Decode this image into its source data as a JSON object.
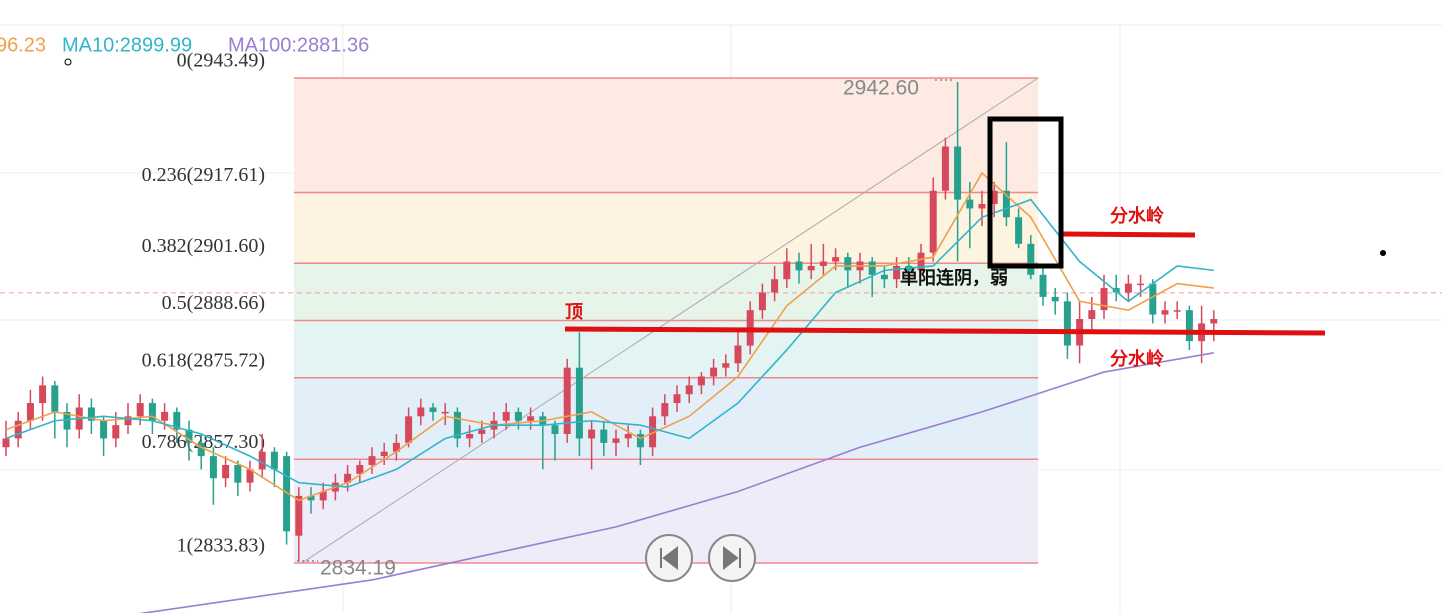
{
  "chart_data": {
    "type": "candlestick",
    "ylim": [
      2822.53,
      2961.13
    ],
    "up_color": "#d6495c",
    "down_color": "#27a08d",
    "ohlc": [
      [
        2860,
        2866,
        2858,
        2862
      ],
      [
        2862,
        2868,
        2860,
        2866
      ],
      [
        2866,
        2873,
        2864,
        2870
      ],
      [
        2870,
        2876,
        2866,
        2874
      ],
      [
        2874,
        2875,
        2862,
        2868
      ],
      [
        2868,
        2870,
        2860,
        2864
      ],
      [
        2864,
        2872,
        2862,
        2869
      ],
      [
        2869,
        2871,
        2863,
        2866
      ],
      [
        2866,
        2867,
        2858,
        2862
      ],
      [
        2862,
        2868,
        2860,
        2865
      ],
      [
        2865,
        2870,
        2863,
        2867
      ],
      [
        2867,
        2872,
        2865,
        2870
      ],
      [
        2870,
        2871,
        2863,
        2866
      ],
      [
        2866,
        2870,
        2864,
        2868
      ],
      [
        2868,
        2869,
        2861,
        2864
      ],
      [
        2864,
        2866,
        2857,
        2861
      ],
      [
        2861,
        2863,
        2855,
        2858
      ],
      [
        2858,
        2860,
        2847,
        2853
      ],
      [
        2853,
        2858,
        2851,
        2856
      ],
      [
        2856,
        2857,
        2849,
        2852
      ],
      [
        2852,
        2857,
        2850,
        2855
      ],
      [
        2855,
        2863,
        2853,
        2859
      ],
      [
        2859,
        2860,
        2851,
        2855
      ],
      [
        2858,
        2859,
        2838,
        2841
      ],
      [
        2840,
        2851,
        2834.19,
        2849
      ],
      [
        2849,
        2851,
        2845,
        2848
      ],
      [
        2848,
        2852,
        2846,
        2850
      ],
      [
        2850,
        2854,
        2848,
        2852
      ],
      [
        2852,
        2856,
        2850,
        2854
      ],
      [
        2854,
        2857,
        2852,
        2856
      ],
      [
        2856,
        2860,
        2854,
        2858
      ],
      [
        2858,
        2861,
        2856,
        2859
      ],
      [
        2859,
        2863,
        2857,
        2861
      ],
      [
        2861,
        2869,
        2860,
        2867
      ],
      [
        2867,
        2871,
        2865,
        2869
      ],
      [
        2869,
        2870,
        2866,
        2868
      ],
      [
        2868,
        2870,
        2865,
        2868
      ],
      [
        2868,
        2869,
        2860,
        2862
      ],
      [
        2862,
        2865,
        2860,
        2863
      ],
      [
        2863,
        2866,
        2861,
        2864
      ],
      [
        2864,
        2868,
        2862,
        2866
      ],
      [
        2866,
        2870,
        2864,
        2868
      ],
      [
        2868,
        2869,
        2864,
        2866
      ],
      [
        2866,
        2869,
        2864,
        2867
      ],
      [
        2867,
        2868,
        2855,
        2865
      ],
      [
        2865,
        2866,
        2857,
        2863
      ],
      [
        2863,
        2880,
        2861,
        2878
      ],
      [
        2878,
        2886,
        2858,
        2862
      ],
      [
        2862,
        2866,
        2855,
        2864
      ],
      [
        2864,
        2866,
        2858,
        2861
      ],
      [
        2861,
        2864,
        2858,
        2862
      ],
      [
        2862,
        2865,
        2860,
        2863
      ],
      [
        2863,
        2864,
        2856,
        2860
      ],
      [
        2860,
        2869,
        2858,
        2867
      ],
      [
        2867,
        2872,
        2865,
        2870
      ],
      [
        2870,
        2874,
        2868,
        2872
      ],
      [
        2872,
        2876,
        2870,
        2874
      ],
      [
        2874,
        2877,
        2872,
        2876
      ],
      [
        2876,
        2880,
        2874,
        2878
      ],
      [
        2878,
        2881,
        2876,
        2879
      ],
      [
        2879,
        2886,
        2877,
        2883
      ],
      [
        2883,
        2893,
        2881,
        2891
      ],
      [
        2891,
        2897,
        2889,
        2895
      ],
      [
        2895,
        2901,
        2893,
        2898
      ],
      [
        2898,
        2905,
        2896,
        2902
      ],
      [
        2902,
        2904,
        2897,
        2900
      ],
      [
        2900,
        2906,
        2898,
        2901
      ],
      [
        2901,
        2906,
        2899,
        2902
      ],
      [
        2902,
        2905,
        2900,
        2903
      ],
      [
        2903,
        2904,
        2896,
        2900
      ],
      [
        2900,
        2904,
        2897,
        2902
      ],
      [
        2902,
        2903,
        2894,
        2899
      ],
      [
        2899,
        2901,
        2896,
        2898
      ],
      [
        2898,
        2903,
        2896,
        2901
      ],
      [
        2901,
        2903,
        2898,
        2900
      ],
      [
        2900,
        2906,
        2899,
        2904
      ],
      [
        2904,
        2921,
        2902,
        2918
      ],
      [
        2918,
        2930,
        2916,
        2928
      ],
      [
        2928,
        2942.6,
        2902,
        2916
      ],
      [
        2916,
        2920,
        2905,
        2914
      ],
      [
        2914,
        2918,
        2910,
        2915
      ],
      [
        2915,
        2920,
        2912,
        2918
      ],
      [
        2918,
        2929,
        2910,
        2912
      ],
      [
        2912,
        2914,
        2905,
        2906
      ],
      [
        2906,
        2908,
        2898,
        2899
      ],
      [
        2899,
        2901,
        2892,
        2894
      ],
      [
        2894,
        2896,
        2890,
        2893
      ],
      [
        2893,
        2895,
        2880,
        2883
      ],
      [
        2883,
        2893,
        2879,
        2889
      ],
      [
        2889,
        2894,
        2886,
        2891
      ],
      [
        2891,
        2899,
        2889,
        2896
      ],
      [
        2896,
        2899,
        2893,
        2895
      ],
      [
        2895,
        2899,
        2893,
        2897
      ],
      [
        2897,
        2899,
        2894,
        2897
      ],
      [
        2897,
        2898,
        2888,
        2890
      ],
      [
        2890,
        2893,
        2888,
        2891
      ],
      [
        2891,
        2893,
        2889,
        2891
      ],
      [
        2891,
        2892,
        2882,
        2884
      ],
      [
        2884,
        2892,
        2879,
        2888
      ],
      [
        2888,
        2891,
        2884,
        2889
      ]
    ],
    "series": [
      {
        "name": "96.23",
        "color": "#f0a04b",
        "x": [
          0,
          4,
          8,
          12,
          16,
          20,
          24,
          28,
          32,
          36,
          40,
          44,
          48,
          52,
          56,
          60,
          64,
          68,
          72,
          76,
          80,
          84,
          88,
          92,
          96,
          99
        ],
        "values": [
          2864,
          2868,
          2866,
          2867,
          2860,
          2855,
          2848,
          2852,
          2859,
          2867,
          2865,
          2866,
          2868,
          2862,
          2867,
          2876,
          2892,
          2901,
          2901,
          2903,
          2922,
          2912,
          2893,
          2891,
          2897,
          2896
        ]
      },
      {
        "name": "MA10:2899.99",
        "color": "#2fb6c9",
        "x": [
          0,
          4,
          8,
          12,
          16,
          20,
          24,
          28,
          32,
          36,
          40,
          44,
          48,
          52,
          56,
          60,
          64,
          68,
          72,
          76,
          80,
          84,
          88,
          92,
          96,
          99
        ],
        "values": [
          2862,
          2866,
          2867,
          2866,
          2863,
          2858,
          2852,
          2851,
          2855,
          2862,
          2865,
          2865,
          2866,
          2865,
          2862,
          2870,
          2882,
          2895,
          2900,
          2901,
          2912,
          2916,
          2902,
          2893,
          2901,
          2900
        ]
      },
      {
        "name": "MA100:2881.36",
        "color": "#9a7fd1",
        "x": [
          10,
          20,
          30,
          40,
          50,
          60,
          70,
          80,
          90,
          99
        ],
        "values": [
          2822,
          2826,
          2830,
          2836,
          2842,
          2850,
          2860,
          2868,
          2877,
          2881.36
        ]
      }
    ],
    "fib": [
      {
        "label": "0(2943.49)",
        "price": 2943.49
      },
      {
        "label": "0.236(2917.61)",
        "price": 2917.61
      },
      {
        "label": "0.382(2901.60)",
        "price": 2901.6
      },
      {
        "label": "0.5(2888.66)",
        "price": 2888.66
      },
      {
        "label": "0.618(2875.72)",
        "price": 2875.72
      },
      {
        "label": "0.786(2857.30)",
        "price": 2857.3
      },
      {
        "label": "1(2833.83)",
        "price": 2833.83
      }
    ],
    "fib_colors": [
      "#fdebe3",
      "#fdf3e1",
      "#e7f4ea",
      "#e3f4f2",
      "#e3eff8",
      "#eeecf9"
    ],
    "fib_span": [
      23.6,
      84.6
    ],
    "high_label": "2942.60",
    "low_label": "2834.19",
    "current_price": 2894.9,
    "annotations": [
      "顶",
      "分水岭",
      "分水岭",
      "单阳连阴，弱"
    ]
  }
}
